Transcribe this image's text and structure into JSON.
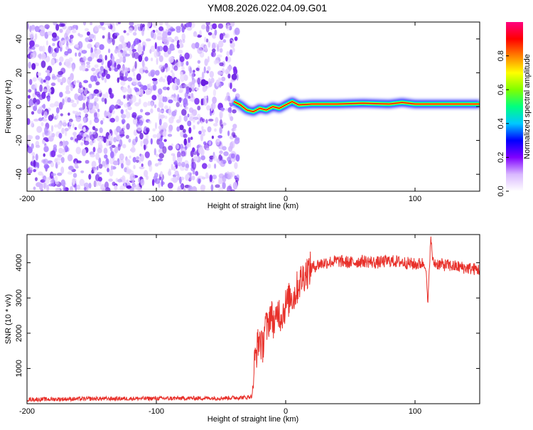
{
  "title": "YM08.2026.022.04.09.G01",
  "colors": {
    "snr_line": "#e8302a",
    "scatter_purple": "#7a2cf0",
    "axis": "#000000"
  },
  "chart_data": [
    {
      "type": "heatmap",
      "xlabel": "Height of straight line (km)",
      "ylabel": "Frequency (Hz)",
      "xlim": [
        -200,
        150
      ],
      "ylim": [
        -50,
        50
      ],
      "xticks": [
        -200,
        -100,
        0,
        100
      ],
      "yticks": [
        -40,
        -20,
        0,
        20,
        40
      ],
      "noise_region_x": [
        -200,
        -37
      ],
      "signal_track": {
        "x": [
          -40,
          -35,
          -30,
          -25,
          -20,
          -15,
          -10,
          -5,
          0,
          5,
          10,
          20,
          40,
          60,
          80,
          90,
          100,
          110,
          120,
          150
        ],
        "y": [
          3,
          1,
          -2,
          -3,
          -1,
          -2,
          0,
          -1,
          1,
          3,
          1,
          1.5,
          1.5,
          2,
          1.5,
          2.5,
          1.5,
          1.5,
          1.5,
          1.5
        ]
      },
      "colorbar": {
        "label": "Normalized spectral amplitude",
        "range": [
          0,
          1
        ],
        "ticks": [
          "0.0",
          "0.2",
          "0.4",
          "0.6",
          "0.8"
        ],
        "tick_values": [
          0.0,
          0.2,
          0.4,
          0.6,
          0.8
        ],
        "colors": [
          "#ffffff",
          "#d9b8ff",
          "#8000ff",
          "#0000ff",
          "#00c8ff",
          "#00ff80",
          "#80ff00",
          "#ffff00",
          "#ff8000",
          "#ff0000",
          "#ff0080"
        ]
      }
    },
    {
      "type": "line",
      "xlabel": "Height of straight line (km)",
      "ylabel": "SNR (10 * v/v)",
      "xlim": [
        -200,
        150
      ],
      "ylim": [
        0,
        4800
      ],
      "xticks": [
        -200,
        -100,
        0,
        100
      ],
      "yticks": [
        1000,
        2000,
        3000,
        4000
      ],
      "series": [
        {
          "x": [
            -200,
            -150,
            -100,
            -50,
            -30,
            -26,
            -24,
            -22,
            -20,
            -18,
            -16,
            -14,
            -12,
            -10,
            -8,
            -6,
            -4,
            -2,
            0,
            2,
            4,
            6,
            8,
            10,
            15,
            20,
            25,
            30,
            40,
            50,
            60,
            70,
            80,
            90,
            100,
            108,
            110,
            112,
            114,
            120,
            130,
            140,
            150
          ],
          "values": [
            120,
            140,
            150,
            160,
            180,
            220,
            1200,
            1600,
            1900,
            1500,
            2300,
            2100,
            2600,
            2400,
            2200,
            2700,
            2500,
            2600,
            2800,
            2900,
            3100,
            3000,
            3200,
            3400,
            3700,
            3850,
            3950,
            4000,
            4050,
            4000,
            4050,
            4000,
            4050,
            4020,
            3950,
            4000,
            2800,
            4700,
            4000,
            3950,
            3900,
            3850,
            3800
          ]
        }
      ]
    }
  ]
}
